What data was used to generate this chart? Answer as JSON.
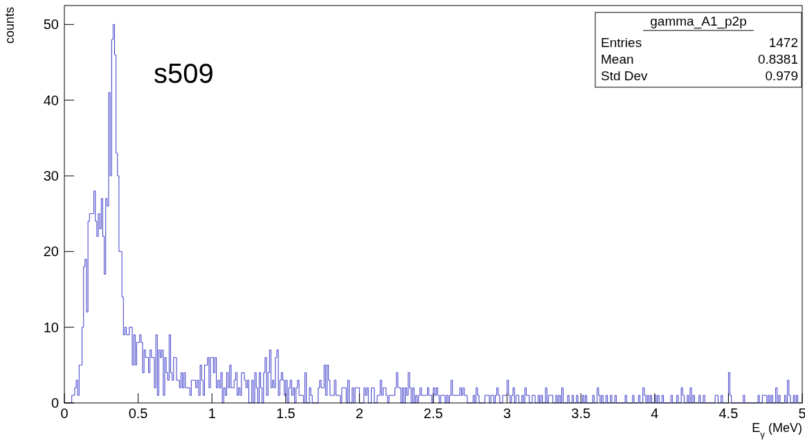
{
  "chart_data": {
    "type": "histogram",
    "xlabel": "E$_{γ}$ (MeV)",
    "ylabel": "counts",
    "color": "#3838c8",
    "annotations": [
      "s509",
      "gamma_A1_p2p",
      "Entries",
      "1472",
      "Mean",
      "0.8381",
      "Std Dev",
      "0.979"
    ],
    "xlim": [
      0,
      5
    ],
    "ylim": [
      0,
      52.5
    ],
    "xticks": [
      0,
      0.5,
      1,
      1.5,
      2,
      2.5,
      3,
      3.5,
      4,
      4.5,
      5
    ],
    "yticks": [
      0,
      10,
      20,
      30,
      40,
      50
    ],
    "bins": [
      0,
      0.01,
      0.02,
      0.03,
      0.04,
      0.05,
      0.06,
      0.07,
      0.08,
      0.09,
      0.1,
      0.11,
      0.12,
      0.13,
      0.14,
      0.15,
      0.16,
      0.17,
      0.18,
      0.19,
      0.2,
      0.21,
      0.22,
      0.23,
      0.24,
      0.25,
      0.26,
      0.27,
      0.28,
      0.29,
      0.3,
      0.31,
      0.32,
      0.33,
      0.34,
      0.35,
      0.36,
      0.37,
      0.38,
      0.39,
      0.4,
      0.41,
      0.42,
      0.43,
      0.44,
      0.45,
      0.46,
      0.47,
      0.48,
      0.49,
      0.5,
      0.51,
      0.52,
      0.53,
      0.54,
      0.55,
      0.56,
      0.57,
      0.58,
      0.59,
      0.6,
      0.61,
      0.62,
      0.63,
      0.64,
      0.65,
      0.66,
      0.67,
      0.68,
      0.69,
      0.7,
      0.71,
      0.72,
      0.73,
      0.74,
      0.75,
      0.76,
      0.77,
      0.78,
      0.79,
      0.8,
      0.81,
      0.82,
      0.83,
      0.84,
      0.85,
      0.86,
      0.87,
      0.88,
      0.89,
      0.9,
      0.91,
      0.92,
      0.93,
      0.94,
      0.95,
      0.96,
      0.97,
      0.98,
      0.99,
      1,
      1.01,
      1.02,
      1.03,
      1.04,
      1.05,
      1.06,
      1.07,
      1.08,
      1.09,
      1.1,
      1.11,
      1.12,
      1.13,
      1.14,
      1.15,
      1.16,
      1.17,
      1.18,
      1.19,
      1.2,
      1.21,
      1.22,
      1.23,
      1.24,
      1.25,
      1.26,
      1.27,
      1.28,
      1.29,
      1.3,
      1.31,
      1.32,
      1.33,
      1.34,
      1.35,
      1.36,
      1.37,
      1.38,
      1.39,
      1.4,
      1.41,
      1.42,
      1.43,
      1.44,
      1.45,
      1.46,
      1.47,
      1.48,
      1.49,
      1.5,
      1.51,
      1.52,
      1.53,
      1.54,
      1.55,
      1.56,
      1.57,
      1.58,
      1.59,
      1.6,
      1.61,
      1.62,
      1.63,
      1.64,
      1.65,
      1.66,
      1.67,
      1.68,
      1.69,
      1.7,
      1.71,
      1.72,
      1.73,
      1.74,
      1.75,
      1.76,
      1.77,
      1.78,
      1.79,
      1.8,
      1.81,
      1.82,
      1.83,
      1.84,
      1.85,
      1.86,
      1.87,
      1.88,
      1.89,
      1.9,
      1.91,
      1.92,
      1.93,
      1.94,
      1.95,
      1.96,
      1.97,
      1.98,
      1.99,
      2,
      2.01,
      2.02,
      2.03,
      2.04,
      2.05,
      2.06,
      2.07,
      2.08,
      2.09,
      2.1,
      2.11,
      2.12,
      2.13,
      2.14,
      2.15,
      2.16,
      2.17,
      2.18,
      2.19,
      2.2,
      2.21,
      2.22,
      2.23,
      2.24,
      2.25,
      2.26,
      2.27,
      2.28,
      2.29,
      2.3,
      2.31,
      2.32,
      2.33,
      2.34,
      2.35,
      2.36,
      2.37,
      2.38,
      2.39,
      2.4,
      2.41,
      2.42,
      2.43,
      2.44,
      2.45,
      2.46,
      2.47,
      2.48,
      2.49,
      2.5,
      2.51,
      2.52,
      2.53,
      2.54,
      2.55,
      2.56,
      2.57,
      2.58,
      2.59,
      2.6,
      2.61,
      2.62,
      2.63,
      2.64,
      2.65,
      2.66,
      2.67,
      2.68,
      2.69,
      2.7,
      2.71,
      2.72,
      2.73,
      2.74,
      2.75,
      2.76,
      2.77,
      2.78,
      2.79,
      2.8,
      2.81,
      2.82,
      2.83,
      2.84,
      2.85,
      2.86,
      2.87,
      2.88,
      2.89,
      2.9,
      2.91,
      2.92,
      2.93,
      2.94,
      2.95,
      2.96,
      2.97,
      2.98,
      2.99,
      3,
      3.01,
      3.02,
      3.03,
      3.04,
      3.05,
      3.06,
      3.07,
      3.08,
      3.09,
      3.1,
      3.11,
      3.12,
      3.13,
      3.14,
      3.15,
      3.16,
      3.17,
      3.18,
      3.19,
      3.2,
      3.21,
      3.22,
      3.23,
      3.24,
      3.25,
      3.26,
      3.27,
      3.28,
      3.29,
      3.3,
      3.31,
      3.32,
      3.33,
      3.34,
      3.35,
      3.36,
      3.37,
      3.38,
      3.39,
      3.4,
      3.41,
      3.42,
      3.43,
      3.44,
      3.45,
      3.46,
      3.47,
      3.48,
      3.49,
      3.5,
      3.51,
      3.52,
      3.53,
      3.54,
      3.55,
      3.56,
      3.57,
      3.58,
      3.59,
      3.6,
      3.61,
      3.62,
      3.63,
      3.64,
      3.65,
      3.66,
      3.67,
      3.68,
      3.69,
      3.7,
      3.71,
      3.72,
      3.73,
      3.74,
      3.75,
      3.76,
      3.77,
      3.78,
      3.79,
      3.8,
      3.81,
      3.82,
      3.83,
      3.84,
      3.85,
      3.86,
      3.87,
      3.88,
      3.89,
      3.9,
      3.91,
      3.92,
      3.93,
      3.94,
      3.95,
      3.96,
      3.97,
      3.98,
      3.99,
      4,
      4.01,
      4.02,
      4.03,
      4.04,
      4.05,
      4.06,
      4.07,
      4.08,
      4.09,
      4.1,
      4.11,
      4.12,
      4.13,
      4.14,
      4.15,
      4.16,
      4.17,
      4.18,
      4.19,
      4.2,
      4.21,
      4.22,
      4.23,
      4.24,
      4.25,
      4.26,
      4.27,
      4.28,
      4.29,
      4.3,
      4.31,
      4.32,
      4.33,
      4.34,
      4.35,
      4.36,
      4.37,
      4.38,
      4.39,
      4.4,
      4.41,
      4.42,
      4.43,
      4.44,
      4.45,
      4.46,
      4.47,
      4.48,
      4.49,
      4.5,
      4.51,
      4.52,
      4.53,
      4.54,
      4.55,
      4.56,
      4.57,
      4.58,
      4.59,
      4.6,
      4.61,
      4.62,
      4.63,
      4.64,
      4.65,
      4.66,
      4.67,
      4.68,
      4.69,
      4.7,
      4.71,
      4.72,
      4.73,
      4.74,
      4.75,
      4.76,
      4.77,
      4.78,
      4.79,
      4.8,
      4.81,
      4.82,
      4.83,
      4.84,
      4.85,
      4.86,
      4.87,
      4.88,
      4.89,
      4.9,
      4.91,
      4.92,
      4.93,
      4.94,
      4.95,
      4.96,
      4.97,
      4.98,
      4.99,
      5
    ],
    "values": [
      0,
      0,
      0,
      0,
      0,
      1,
      1,
      2,
      3,
      1,
      5,
      5,
      10,
      18,
      19,
      12,
      24,
      25,
      25,
      25,
      28,
      24,
      22,
      25,
      23,
      27,
      22,
      17,
      27,
      26,
      41,
      30,
      48,
      50,
      46,
      33,
      30,
      20,
      20,
      14,
      9,
      10,
      9,
      9,
      10,
      10,
      5,
      9,
      5,
      8,
      8,
      9,
      8,
      4,
      7,
      6,
      6,
      4,
      7,
      6,
      6,
      2,
      9,
      1,
      7,
      6,
      7,
      1,
      6,
      4,
      3,
      9,
      4,
      3,
      6,
      6,
      3,
      3,
      2,
      4,
      2,
      4,
      2,
      2,
      2,
      1,
      3,
      3,
      3,
      2,
      3,
      1,
      5,
      3,
      1,
      5,
      5,
      6,
      2,
      6,
      6,
      4,
      6,
      2,
      3,
      2,
      4,
      0,
      2,
      1,
      4,
      2,
      5,
      2,
      2,
      3,
      4,
      1,
      2,
      1,
      4,
      4,
      3,
      2,
      3,
      0,
      0,
      3,
      0,
      4,
      2,
      0,
      4,
      2,
      0,
      4,
      6,
      1,
      4,
      7,
      2,
      3,
      2,
      6,
      7,
      1,
      3,
      4,
      3,
      1,
      3,
      0,
      2,
      3,
      1,
      2,
      0,
      2,
      3,
      1,
      1,
      1,
      0,
      4,
      0,
      0,
      2,
      1,
      0,
      0,
      0,
      0,
      2,
      3,
      2,
      2,
      5,
      1,
      5,
      3,
      1,
      1,
      1,
      3,
      1,
      1,
      1,
      0,
      2,
      2,
      2,
      0,
      3,
      0,
      0,
      2,
      0,
      2,
      2,
      2,
      0,
      0,
      0,
      2,
      1,
      2,
      0,
      0,
      2,
      2,
      0,
      0,
      1,
      1,
      3,
      1,
      2,
      2,
      1,
      0,
      1,
      1,
      1,
      1,
      2,
      4,
      2,
      2,
      0,
      2,
      0,
      2,
      1,
      4,
      2,
      0,
      2,
      0,
      1,
      0,
      1,
      2,
      1,
      1,
      1,
      1,
      2,
      1,
      1,
      0,
      2,
      1,
      2,
      1,
      0,
      1,
      1,
      1,
      0,
      1,
      0,
      1,
      3,
      1,
      1,
      1,
      1,
      1,
      2,
      1,
      2,
      1,
      1,
      0,
      0,
      0,
      0,
      1,
      0,
      2,
      1,
      0,
      0,
      0,
      0,
      1,
      1,
      1,
      0,
      1,
      1,
      0,
      1,
      2,
      1,
      0,
      0,
      1,
      1,
      1,
      3,
      1,
      0,
      1,
      2,
      0,
      1,
      1,
      0,
      0,
      1,
      0,
      2,
      1,
      1,
      0,
      0,
      1,
      1,
      0,
      0,
      1,
      0,
      1,
      0,
      0,
      2,
      0,
      1,
      1,
      1,
      0,
      0,
      1,
      0,
      1,
      0,
      2,
      0,
      0,
      0,
      1,
      0,
      0,
      1,
      0,
      0,
      1,
      0,
      0,
      0,
      1,
      0,
      1,
      0,
      0,
      0,
      0,
      1,
      0,
      0,
      2,
      1,
      0,
      1,
      0,
      0,
      1,
      0,
      0,
      1,
      0,
      0,
      1,
      0,
      0,
      0,
      0,
      0,
      0,
      1,
      0,
      0,
      0,
      0,
      1,
      0,
      0,
      0,
      1,
      0,
      0,
      2,
      1,
      0,
      1,
      0,
      1,
      0,
      0,
      1,
      0,
      1,
      0,
      0,
      1,
      0,
      0,
      0,
      0,
      0,
      1,
      0,
      0,
      0,
      1,
      0,
      0,
      2,
      1,
      0,
      0,
      1,
      0,
      2,
      0,
      1,
      0,
      0,
      0,
      1,
      0,
      0,
      1,
      0,
      0,
      0,
      0,
      0,
      0,
      0,
      1,
      1,
      0,
      0,
      1,
      0,
      0,
      0,
      0,
      4,
      1,
      0,
      0,
      0,
      0,
      0,
      0,
      0,
      0,
      1,
      0,
      0,
      0,
      0,
      0,
      0,
      0,
      0,
      0,
      1,
      0,
      0,
      1,
      1,
      1,
      0,
      1,
      0,
      1,
      0,
      0,
      2,
      0,
      1,
      0,
      0,
      0,
      1,
      0,
      3,
      1,
      0,
      0,
      1,
      0,
      1,
      0,
      0,
      0
    ]
  }
}
